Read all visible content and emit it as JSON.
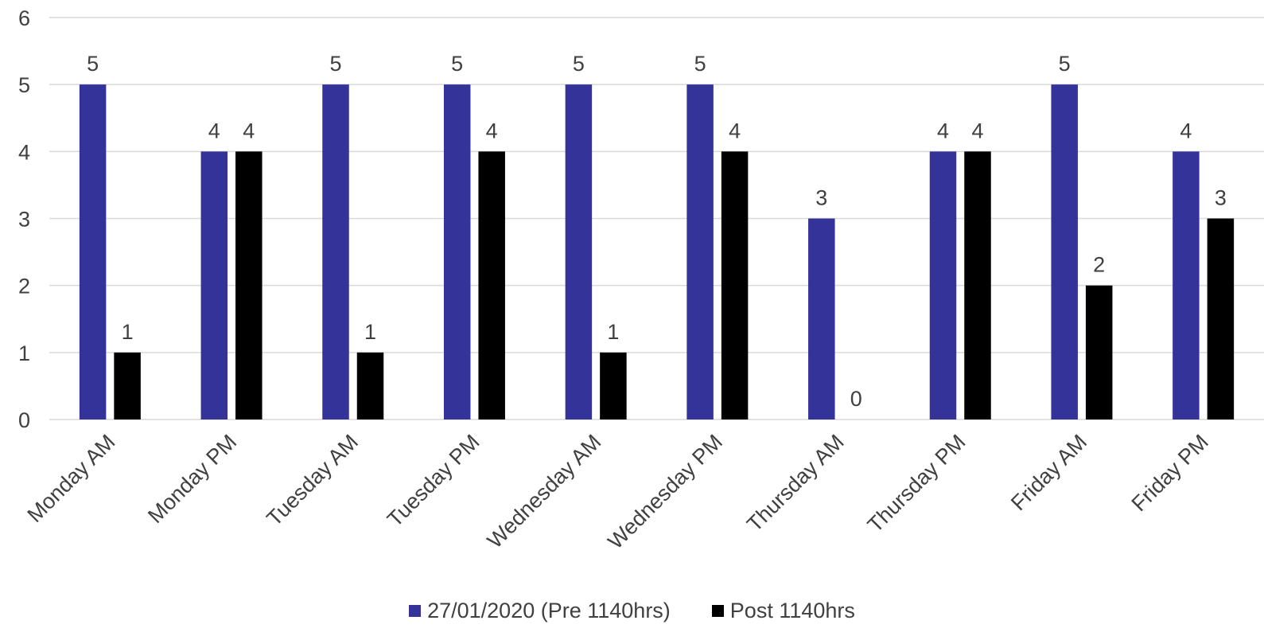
{
  "chart_data": {
    "type": "bar",
    "title": "",
    "xlabel": "",
    "ylabel": "",
    "ylim": [
      0,
      6
    ],
    "yticks": [
      0,
      1,
      2,
      3,
      4,
      5,
      6
    ],
    "grid": true,
    "legend_position": "bottom",
    "categories": [
      "Monday AM",
      "Monday PM",
      "Tuesday AM",
      "Tuesday PM",
      "Wednesday AM",
      "Wednesday PM",
      "Thursday AM",
      "Thursday PM",
      "Friday AM",
      "Friday PM"
    ],
    "series": [
      {
        "name": "27/01/2020 (Pre 1140hrs)",
        "color": "#333399",
        "values": [
          5,
          4,
          5,
          5,
          5,
          5,
          3,
          4,
          5,
          4
        ]
      },
      {
        "name": "Post 1140hrs",
        "color": "#000000",
        "values": [
          1,
          4,
          1,
          4,
          1,
          4,
          0,
          4,
          2,
          3
        ]
      }
    ],
    "data_labels": true
  }
}
